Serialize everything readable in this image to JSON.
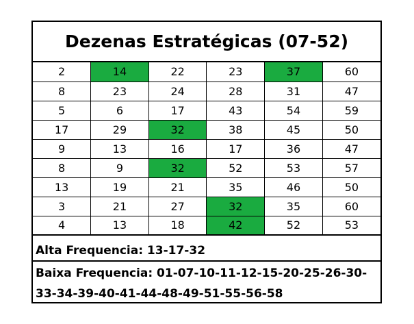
{
  "title": "Dezenas Estratégicas (07-52)",
  "highlight_color": "#1aab40",
  "grid": {
    "rows": [
      {
        "cells": [
          {
            "v": "2",
            "hl": false
          },
          {
            "v": "14",
            "hl": true
          },
          {
            "v": "22",
            "hl": false
          },
          {
            "v": "23",
            "hl": false
          },
          {
            "v": "37",
            "hl": true
          },
          {
            "v": "60",
            "hl": false
          }
        ]
      },
      {
        "cells": [
          {
            "v": "8",
            "hl": false
          },
          {
            "v": "23",
            "hl": false
          },
          {
            "v": "24",
            "hl": false
          },
          {
            "v": "28",
            "hl": false
          },
          {
            "v": "31",
            "hl": false
          },
          {
            "v": "47",
            "hl": false
          }
        ]
      },
      {
        "cells": [
          {
            "v": "5",
            "hl": false
          },
          {
            "v": "6",
            "hl": false
          },
          {
            "v": "17",
            "hl": false
          },
          {
            "v": "43",
            "hl": false
          },
          {
            "v": "54",
            "hl": false
          },
          {
            "v": "59",
            "hl": false
          }
        ]
      },
      {
        "cells": [
          {
            "v": "17",
            "hl": false
          },
          {
            "v": "29",
            "hl": false
          },
          {
            "v": "32",
            "hl": true
          },
          {
            "v": "38",
            "hl": false
          },
          {
            "v": "45",
            "hl": false
          },
          {
            "v": "50",
            "hl": false
          }
        ]
      },
      {
        "cells": [
          {
            "v": "9",
            "hl": false
          },
          {
            "v": "13",
            "hl": false
          },
          {
            "v": "16",
            "hl": false
          },
          {
            "v": "17",
            "hl": false
          },
          {
            "v": "36",
            "hl": false
          },
          {
            "v": "47",
            "hl": false
          }
        ]
      },
      {
        "cells": [
          {
            "v": "8",
            "hl": false
          },
          {
            "v": "9",
            "hl": false
          },
          {
            "v": "32",
            "hl": true
          },
          {
            "v": "52",
            "hl": false
          },
          {
            "v": "53",
            "hl": false
          },
          {
            "v": "57",
            "hl": false
          }
        ]
      },
      {
        "cells": [
          {
            "v": "13",
            "hl": false
          },
          {
            "v": "19",
            "hl": false
          },
          {
            "v": "21",
            "hl": false
          },
          {
            "v": "35",
            "hl": false
          },
          {
            "v": "46",
            "hl": false
          },
          {
            "v": "50",
            "hl": false
          }
        ]
      },
      {
        "cells": [
          {
            "v": "3",
            "hl": false
          },
          {
            "v": "21",
            "hl": false
          },
          {
            "v": "27",
            "hl": false
          },
          {
            "v": "32",
            "hl": true
          },
          {
            "v": "35",
            "hl": false
          },
          {
            "v": "60",
            "hl": false
          }
        ]
      },
      {
        "cells": [
          {
            "v": "4",
            "hl": false
          },
          {
            "v": "13",
            "hl": false
          },
          {
            "v": "18",
            "hl": false
          },
          {
            "v": "42",
            "hl": true
          },
          {
            "v": "52",
            "hl": false
          },
          {
            "v": "53",
            "hl": false
          }
        ]
      }
    ]
  },
  "alta_frequencia": "Alta Frequencia: 13-17-32",
  "baixa_frequencia": {
    "line1": "Baixa Frequencia: 01-07-10-11-12-15-20-25-26-30-",
    "line2": "33-34-39-40-41-44-48-49-51-55-56-58"
  }
}
